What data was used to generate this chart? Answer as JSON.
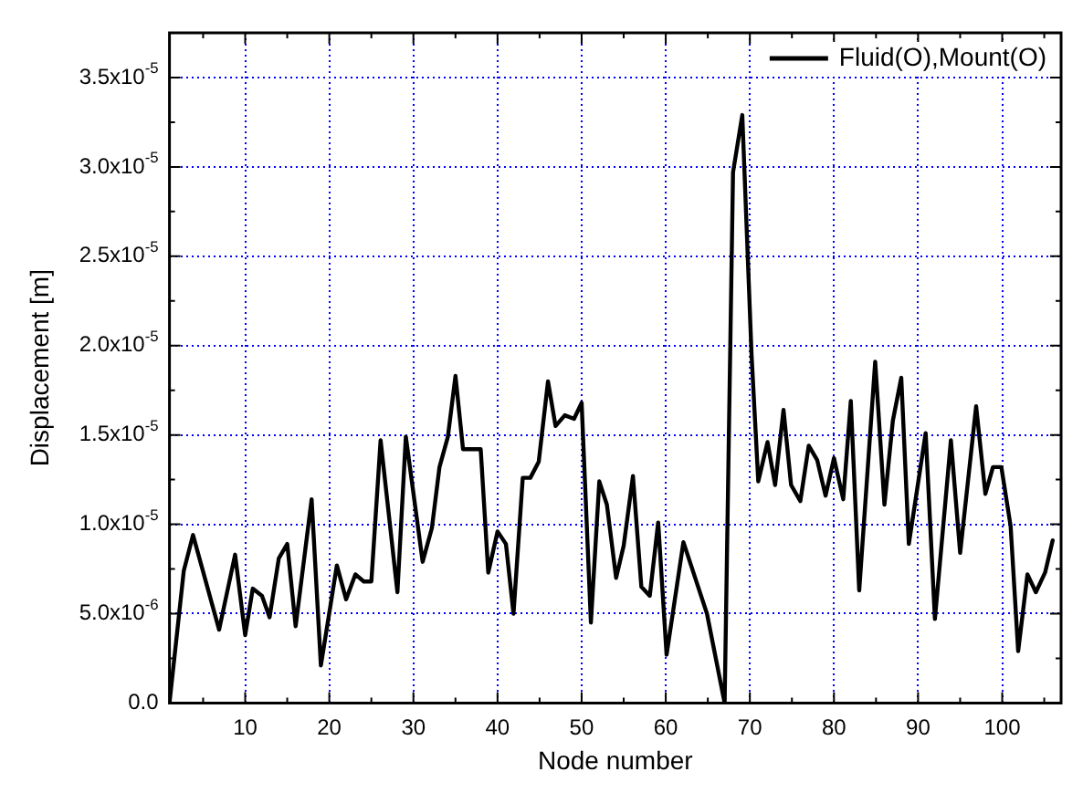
{
  "chart_data": {
    "type": "line",
    "xlabel": "Node number",
    "ylabel": "Displacement [m]",
    "series": [
      {
        "name": "Fluid(O),Mount(O)",
        "color": "#000000",
        "x": [
          1,
          2.7,
          3.8,
          6.9,
          8.8,
          10,
          10.9,
          12,
          12.9,
          14,
          15,
          16,
          17.9,
          19,
          20.9,
          22,
          23.1,
          24.1,
          25,
          26.1,
          28.1,
          29.1,
          31.1,
          32.2,
          33.1,
          34.1,
          35,
          35.9,
          38,
          38.9,
          40,
          41,
          41.9,
          43,
          43.9,
          44.9,
          46,
          46.9,
          48,
          49.1,
          50,
          51.1,
          52.1,
          53,
          54.1,
          55,
          56.1,
          57.1,
          58.1,
          59.1,
          60.1,
          62.1,
          64.9,
          67,
          68,
          69.1,
          70.2,
          71,
          72.1,
          73,
          74,
          74.9,
          76,
          77,
          78,
          79,
          80,
          81.1,
          82,
          83,
          84.9,
          86,
          87,
          88,
          88.9,
          90.9,
          92,
          93.9,
          95,
          96.9,
          98,
          98.9,
          99.9,
          101,
          101.9,
          103,
          104,
          105.1,
          106
        ],
        "values": [
          0,
          7.4e-06,
          9.4e-06,
          4.1e-06,
          8.3e-06,
          3.8e-06,
          6.4e-06,
          6e-06,
          4.8e-06,
          8.1e-06,
          8.9e-06,
          4.3e-06,
          1.14e-05,
          2.1e-06,
          7.7e-06,
          5.8e-06,
          7.2e-06,
          6.8e-06,
          6.8e-06,
          1.47e-05,
          6.2e-06,
          1.49e-05,
          7.9e-06,
          9.8e-06,
          1.32e-05,
          1.49e-05,
          1.83e-05,
          1.42e-05,
          1.42e-05,
          7.3e-06,
          9.6e-06,
          8.9e-06,
          5e-06,
          1.26e-05,
          1.26e-05,
          1.35e-05,
          1.8e-05,
          1.55e-05,
          1.61e-05,
          1.59e-05,
          1.68e-05,
          4.5e-06,
          1.24e-05,
          1.11e-05,
          7e-06,
          8.8e-06,
          1.27e-05,
          6.5e-06,
          6e-06,
          1.01e-05,
          2.7e-06,
          9e-06,
          5e-06,
          0,
          2.97e-05,
          3.29e-05,
          1.95e-05,
          1.24e-05,
          1.46e-05,
          1.22e-05,
          1.64e-05,
          1.22e-05,
          1.13e-05,
          1.44e-05,
          1.36e-05,
          1.16e-05,
          1.37e-05,
          1.14e-05,
          1.69e-05,
          6.3e-06,
          1.91e-05,
          1.11e-05,
          1.58e-05,
          1.82e-05,
          8.9e-06,
          1.51e-05,
          4.7e-06,
          1.47e-05,
          8.4e-06,
          1.66e-05,
          1.17e-05,
          1.32e-05,
          1.32e-05,
          9.9e-06,
          2.9e-06,
          7.2e-06,
          6.2e-06,
          7.3e-06,
          9.1e-06
        ]
      }
    ],
    "xlim": [
      1,
      107
    ],
    "xticks": [
      {
        "value": 5,
        "label": null
      },
      10,
      {
        "value": 15,
        "label": null
      },
      20,
      {
        "value": 25,
        "label": null
      },
      30,
      {
        "value": 35,
        "label": null
      },
      40,
      {
        "value": 45,
        "label": null
      },
      50,
      {
        "value": 55,
        "label": null
      },
      60,
      {
        "value": 65,
        "label": null
      },
      70,
      {
        "value": 75,
        "label": null
      },
      80,
      {
        "value": 85,
        "label": null
      },
      90,
      {
        "value": 95,
        "label": null
      },
      100,
      {
        "value": 105,
        "label": null
      }
    ],
    "ylim": [
      0,
      3.75e-05
    ],
    "yticks": [
      {
        "value": 0,
        "label": "0.0"
      },
      {
        "value": 2.5e-06,
        "label": null
      },
      {
        "value": 5e-06,
        "label": "5.0x10$^{-6}$"
      },
      {
        "value": 7.5e-06,
        "label": null
      },
      {
        "value": 1e-05,
        "label": "1.0x10$^{-5}$"
      },
      {
        "value": 1.25e-05,
        "label": null
      },
      {
        "value": 1.5e-05,
        "label": "1.5x10$^{-5}$"
      },
      {
        "value": 1.75e-05,
        "label": null
      },
      {
        "value": 2e-05,
        "label": "2.0x10$^{-5}$"
      },
      {
        "value": 2.25e-05,
        "label": null
      },
      {
        "value": 2.5e-05,
        "label": "2.5x10$^{-5}$"
      },
      {
        "value": 2.75e-05,
        "label": null
      },
      {
        "value": 3e-05,
        "label": "3.0x10$^{-5}$"
      },
      {
        "value": 3.25e-05,
        "label": null
      },
      {
        "value": 3.5e-05,
        "label": "3.5x10$^{-5}$"
      }
    ],
    "grid": true,
    "legend": "top right",
    "marker": "none",
    "line_style": "solid"
  }
}
